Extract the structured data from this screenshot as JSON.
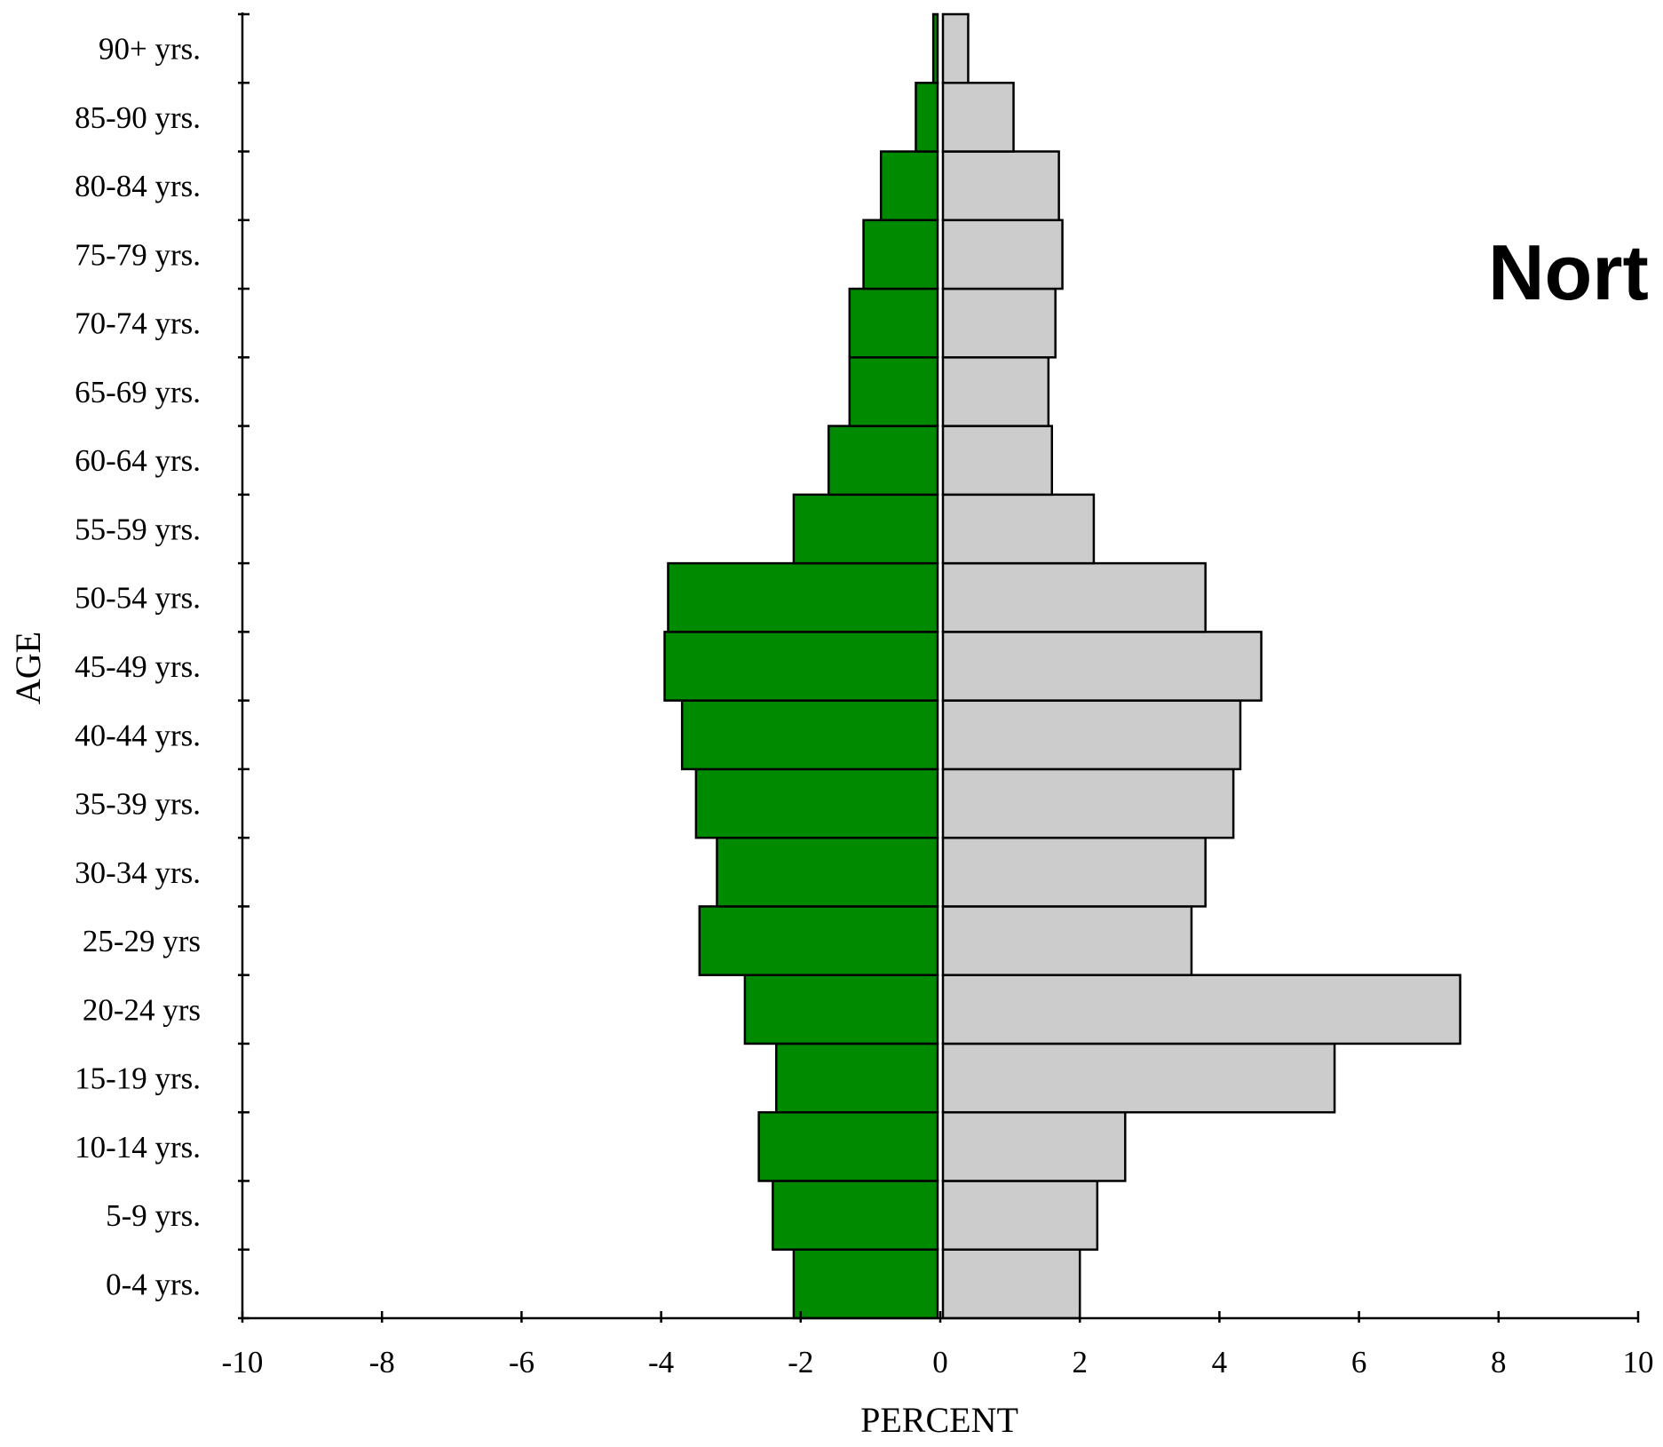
{
  "chart_data": {
    "type": "bar",
    "orientation": "horizontal",
    "title": "Nort",
    "xlabel": "PERCENT",
    "ylabel": "AGE",
    "xlim": [
      -10,
      10
    ],
    "xticks": [
      "-10",
      "-8",
      "-6",
      "-4",
      "-2",
      "0",
      "2",
      "4",
      "6",
      "8",
      "10"
    ],
    "grid": false,
    "colors": {
      "left": "#008a00",
      "right": "#cccccc",
      "stroke": "#000000"
    },
    "categories": [
      "0-4 yrs.",
      "5-9 yrs.",
      "10-14 yrs.",
      "15-19 yrs.",
      "20-24 yrs",
      "25-29 yrs",
      "30-34 yrs.",
      "35-39 yrs.",
      "40-44 yrs.",
      "45-49 yrs.",
      "50-54 yrs.",
      "55-59 yrs.",
      "60-64 yrs.",
      "65-69 yrs.",
      "70-74 yrs.",
      "75-79 yrs.",
      "80-84 yrs.",
      "85-90 yrs.",
      "90+ yrs."
    ],
    "series": [
      {
        "color": "#008a00",
        "values": [
          -2.1,
          -2.4,
          -2.6,
          -2.35,
          -2.8,
          -3.45,
          -3.2,
          -3.5,
          -3.7,
          -3.95,
          -3.9,
          -2.1,
          -1.6,
          -1.3,
          -1.3,
          -1.1,
          -0.85,
          -0.35,
          -0.1
        ]
      },
      {
        "color": "#cccccc",
        "values": [
          2.0,
          2.25,
          2.65,
          5.65,
          7.45,
          3.6,
          3.8,
          4.2,
          4.3,
          4.6,
          3.8,
          2.2,
          1.6,
          1.55,
          1.65,
          1.75,
          1.7,
          1.05,
          0.4
        ]
      }
    ]
  }
}
